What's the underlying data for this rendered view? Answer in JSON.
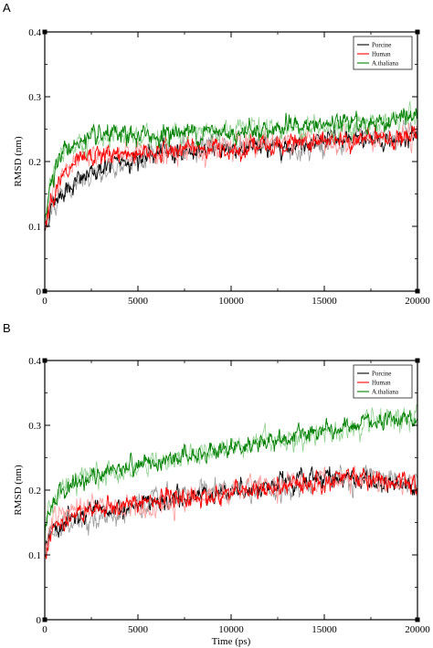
{
  "chart_data": [
    {
      "panel_label": "A",
      "type": "line",
      "title": "",
      "xlabel": "",
      "ylabel": "RMSD (nm)",
      "xlim": [
        0,
        20000
      ],
      "ylim": [
        0,
        0.4
      ],
      "xticks": [
        0,
        5000,
        10000,
        15000,
        20000
      ],
      "xtick_labels": [
        "0",
        "5000",
        "10000",
        "15000",
        "20000"
      ],
      "yticks": [
        0,
        0.1,
        0.2,
        0.3,
        0.4
      ],
      "ytick_labels": [
        "0",
        "0.1",
        "0.2",
        "0.3",
        "0.4"
      ],
      "grid": false,
      "legend_position": "top-right",
      "series": [
        {
          "name": "Porcine",
          "color": "#000000",
          "shade_color": "#9a9a9a",
          "x": [
            0,
            250,
            500,
            1000,
            1500,
            2000,
            2500,
            3000,
            3500,
            4000,
            5000,
            6000,
            7000,
            8000,
            9000,
            10000,
            11000,
            12000,
            13000,
            14000,
            15000,
            16000,
            17000,
            18000,
            19000,
            20000
          ],
          "y": [
            0.095,
            0.12,
            0.14,
            0.155,
            0.165,
            0.175,
            0.18,
            0.19,
            0.195,
            0.2,
            0.205,
            0.21,
            0.215,
            0.215,
            0.22,
            0.22,
            0.22,
            0.225,
            0.225,
            0.23,
            0.235,
            0.23,
            0.235,
            0.23,
            0.235,
            0.24
          ]
        },
        {
          "name": "Human",
          "color": "#ff0000",
          "shade_color": "#ff9a9a",
          "x": [
            0,
            250,
            500,
            1000,
            1500,
            2000,
            2500,
            3000,
            3500,
            4000,
            5000,
            6000,
            7000,
            8000,
            9000,
            10000,
            11000,
            12000,
            13000,
            14000,
            15000,
            16000,
            17000,
            18000,
            19000,
            20000
          ],
          "y": [
            0.1,
            0.135,
            0.155,
            0.175,
            0.19,
            0.2,
            0.205,
            0.21,
            0.21,
            0.21,
            0.215,
            0.215,
            0.22,
            0.22,
            0.22,
            0.22,
            0.225,
            0.225,
            0.225,
            0.23,
            0.23,
            0.235,
            0.235,
            0.235,
            0.235,
            0.24
          ]
        },
        {
          "name": "A.thaliana",
          "color": "#008000",
          "shade_color": "#8fd08f",
          "x": [
            0,
            250,
            500,
            1000,
            1500,
            2000,
            2500,
            3000,
            3500,
            4000,
            5000,
            6000,
            7000,
            8000,
            9000,
            10000,
            11000,
            12000,
            13000,
            14000,
            15000,
            16000,
            17000,
            18000,
            19000,
            20000
          ],
          "y": [
            0.11,
            0.16,
            0.19,
            0.215,
            0.225,
            0.23,
            0.235,
            0.235,
            0.24,
            0.24,
            0.24,
            0.24,
            0.245,
            0.245,
            0.245,
            0.245,
            0.25,
            0.25,
            0.255,
            0.255,
            0.255,
            0.26,
            0.26,
            0.26,
            0.265,
            0.27
          ]
        }
      ]
    },
    {
      "panel_label": "B",
      "type": "line",
      "title": "",
      "xlabel": "Time (ps)",
      "ylabel": "RMSD (nm)",
      "xlim": [
        0,
        20000
      ],
      "ylim": [
        0,
        0.4
      ],
      "xticks": [
        0,
        5000,
        10000,
        15000,
        20000
      ],
      "xtick_labels": [
        "0",
        "5000",
        "10000",
        "15000",
        "20000"
      ],
      "yticks": [
        0,
        0.1,
        0.2,
        0.3,
        0.4
      ],
      "ytick_labels": [
        "0",
        "0.1",
        "0.2",
        "0.3",
        "0.4"
      ],
      "grid": false,
      "legend_position": "top-right",
      "series": [
        {
          "name": "Porcine",
          "color": "#000000",
          "shade_color": "#9a9a9a",
          "x": [
            0,
            250,
            500,
            1000,
            1500,
            2000,
            3000,
            4000,
            5000,
            6000,
            7000,
            8000,
            9000,
            10000,
            11000,
            12000,
            13000,
            14000,
            15000,
            16000,
            17000,
            18000,
            19000,
            20000
          ],
          "y": [
            0.1,
            0.13,
            0.14,
            0.15,
            0.155,
            0.16,
            0.165,
            0.17,
            0.175,
            0.18,
            0.185,
            0.19,
            0.195,
            0.2,
            0.205,
            0.205,
            0.21,
            0.215,
            0.22,
            0.22,
            0.215,
            0.21,
            0.21,
            0.21
          ]
        },
        {
          "name": "Human",
          "color": "#ff0000",
          "shade_color": "#ff9a9a",
          "x": [
            0,
            250,
            500,
            1000,
            1500,
            2000,
            3000,
            4000,
            5000,
            6000,
            7000,
            8000,
            9000,
            10000,
            11000,
            12000,
            13000,
            14000,
            15000,
            16000,
            17000,
            18000,
            19000,
            20000
          ],
          "y": [
            0.1,
            0.13,
            0.145,
            0.155,
            0.16,
            0.165,
            0.17,
            0.175,
            0.18,
            0.185,
            0.185,
            0.19,
            0.19,
            0.195,
            0.2,
            0.2,
            0.205,
            0.21,
            0.215,
            0.22,
            0.22,
            0.215,
            0.21,
            0.205
          ]
        },
        {
          "name": "A.thaliana",
          "color": "#008000",
          "shade_color": "#8fd08f",
          "x": [
            0,
            250,
            500,
            1000,
            1500,
            2000,
            3000,
            4000,
            5000,
            6000,
            7000,
            8000,
            9000,
            10000,
            11000,
            12000,
            13000,
            14000,
            15000,
            16000,
            17000,
            18000,
            19000,
            20000
          ],
          "y": [
            0.13,
            0.17,
            0.185,
            0.2,
            0.21,
            0.215,
            0.225,
            0.235,
            0.24,
            0.245,
            0.25,
            0.255,
            0.26,
            0.265,
            0.27,
            0.275,
            0.28,
            0.285,
            0.29,
            0.295,
            0.3,
            0.305,
            0.305,
            0.31
          ]
        }
      ]
    }
  ]
}
